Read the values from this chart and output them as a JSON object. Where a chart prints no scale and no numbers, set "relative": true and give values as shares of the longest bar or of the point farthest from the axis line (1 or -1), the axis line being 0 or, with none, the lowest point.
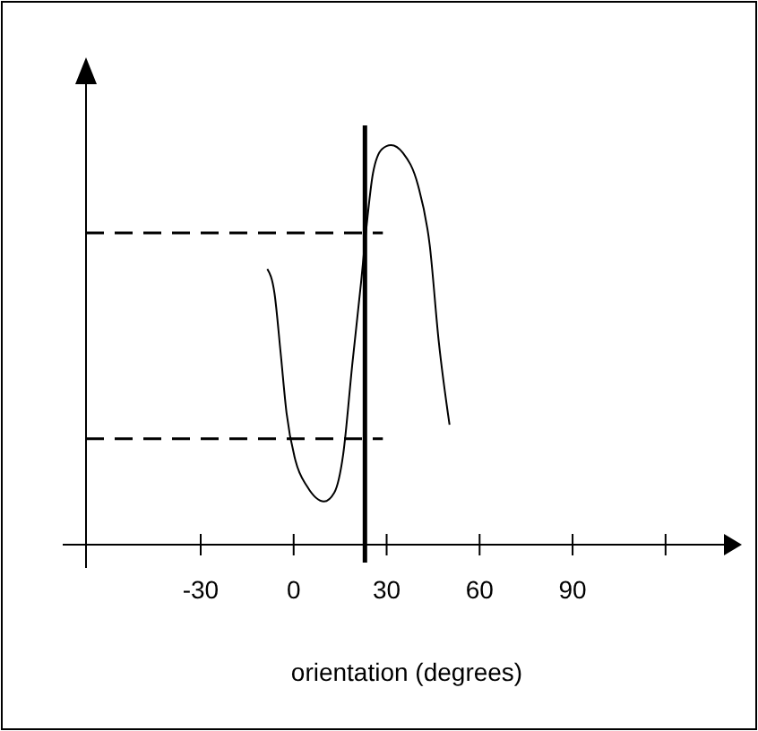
{
  "chart_data": {
    "type": "line",
    "relative": true,
    "xlabel": "orientation (degrees)",
    "xlim": [
      -67,
      140
    ],
    "xticks": [
      -30,
      0,
      30,
      60,
      90,
      {
        "value": 120,
        "label": null
      }
    ],
    "series": [
      {
        "color": "#000000",
        "x": [
          -8.5,
          -6.2,
          -4.2,
          -2.3,
          0.6,
          4.4,
          9.8,
          13.1,
          16,
          18.9,
          21.8,
          23.3,
          25.6,
          28.5,
          31.4,
          35.3,
          40.1,
          43.9,
          46.8,
          50.3
        ],
        "values": [
          0.69,
          0.63,
          0.48,
          0.33,
          0.21,
          0.145,
          0.108,
          0.13,
          0.227,
          0.45,
          0.66,
          0.78,
          0.93,
          0.99,
          1.0,
          0.98,
          0.9,
          0.75,
          0.51,
          0.3
        ]
      }
    ],
    "ref_lines": [
      {
        "axis": "x",
        "value": 23,
        "line_style": "solid",
        "color": "#000000"
      },
      {
        "axis": "y",
        "value": 0.78,
        "line_style": "dashed",
        "color": "#000000"
      },
      {
        "axis": "y",
        "value": 0.265,
        "line_style": "dashed",
        "color": "#000000"
      }
    ],
    "grid": false,
    "marker": "none"
  }
}
